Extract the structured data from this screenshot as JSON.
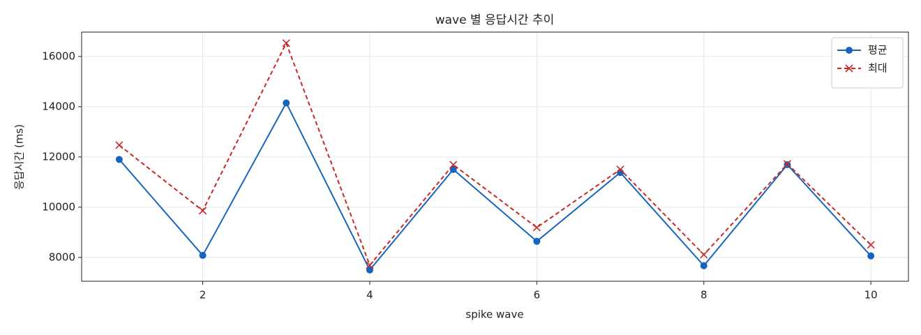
{
  "chart_data": {
    "type": "line",
    "title": "wave 별 응답시간 추이",
    "xlabel": "spike wave",
    "ylabel": "응답시간 (ms)",
    "x": [
      1,
      2,
      3,
      4,
      5,
      6,
      7,
      8,
      9,
      10
    ],
    "series": [
      {
        "name": "평균",
        "color": "#1565c0",
        "linestyle": "solid",
        "marker": "o",
        "values": [
          11900,
          8080,
          14150,
          7500,
          11500,
          8640,
          11380,
          7670,
          11690,
          8060
        ]
      },
      {
        "name": "최대",
        "color": "#c62828",
        "linestyle": "dashed",
        "marker": "x",
        "values": [
          12470,
          9860,
          16530,
          7690,
          11690,
          9190,
          11500,
          8110,
          11720,
          8500
        ]
      }
    ],
    "xlim": [
      0.55,
      10.45
    ],
    "xticks": [
      2,
      4,
      6,
      8,
      10
    ],
    "ylim": [
      7050,
      16970
    ],
    "yticks": [
      8000,
      10000,
      12000,
      14000,
      16000
    ],
    "grid": true,
    "legend": "upper right"
  }
}
